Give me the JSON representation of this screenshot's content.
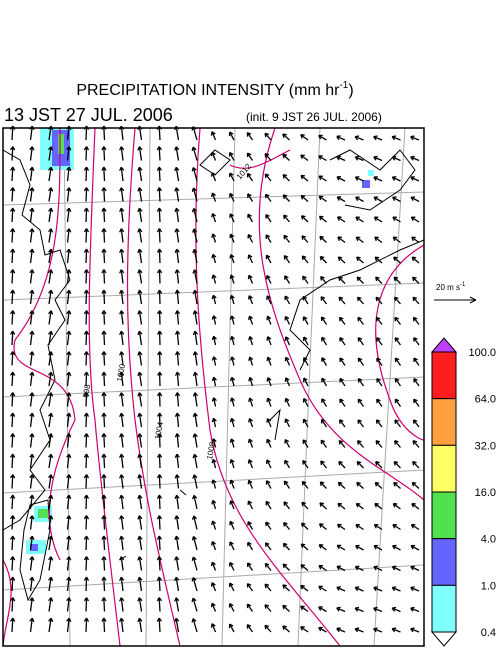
{
  "header": {
    "title": "PRECIPITATION INTENSITY (mm hr",
    "title_sup": "-1",
    "title_end": ")",
    "valid_time": "13 JST 27 JUL. 2006",
    "init_time": "(init. 9 JST 26 JUL. 2006)"
  },
  "wind_scale": {
    "label": "20 m s",
    "label_sup": "-1"
  },
  "contour_labels": [
    "998",
    "1000",
    "1004",
    "1008",
    "1012"
  ],
  "colorbar": {
    "levels": [
      {
        "value": 100,
        "label": "100.0"
      },
      {
        "value": 64,
        "label": "64.0"
      },
      {
        "value": 32,
        "label": "32.0"
      },
      {
        "value": 16,
        "label": "16.0"
      },
      {
        "value": 4,
        "label": "4.0"
      },
      {
        "value": 1,
        "label": "1.0"
      },
      {
        "value": 0.4,
        "label": "0.4"
      }
    ],
    "colors": [
      "#ff1e1e",
      "#ffa040",
      "#ffff66",
      "#50e050",
      "#6464ff",
      "#80ffff"
    ],
    "over_color": "#c040ff",
    "under_color": "#ffffff"
  }
}
